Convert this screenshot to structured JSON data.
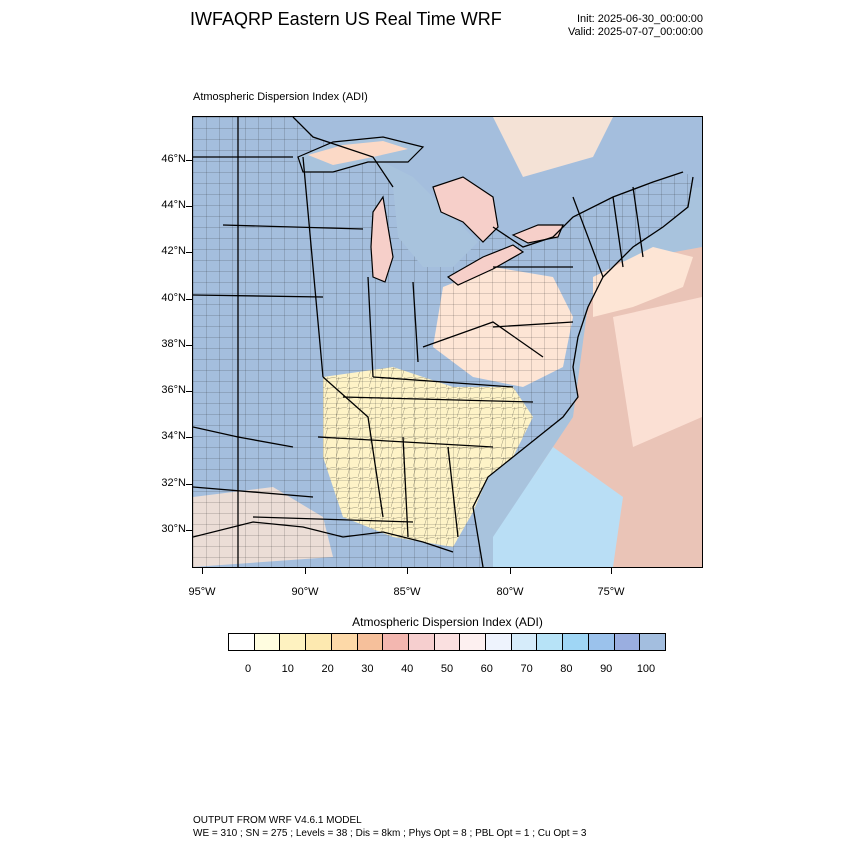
{
  "header": {
    "title": "IWFAQRP Eastern US Real Time WRF",
    "init": "Init: 2025-06-30_00:00:00",
    "valid": "Valid: 2025-07-07_00:00:00"
  },
  "map": {
    "subtitle": "Atmospheric Dispersion Index   (ADI)",
    "lat_labels": [
      "46°N",
      "44°N",
      "42°N",
      "40°N",
      "38°N",
      "36°N",
      "34°N",
      "32°N",
      "30°N"
    ],
    "lon_labels": [
      "95°W",
      "90°W",
      "85°W",
      "80°W",
      "75°W"
    ],
    "colors": {
      "water": "#a8c3dd",
      "land_good": "#a4bedd",
      "land_mid": "#fde5d5",
      "land_low": "#fef3c7",
      "plume": "#f6c4b0",
      "plume_light": "#fbe0d4",
      "high_blue": "#b9def5",
      "state_lines": "#000000",
      "county_lines": "#1a1a1a"
    }
  },
  "colorbar": {
    "title": "Atmospheric Dispersion Index  (ADI)",
    "colors": [
      "#ffffff",
      "#fffde0",
      "#fef2c0",
      "#fde9b0",
      "#fdd9a8",
      "#f6c09b",
      "#f3b7b0",
      "#f6cfcf",
      "#fae0e0",
      "#fdf0f0",
      "#eef3fd",
      "#d6ecfa",
      "#b7e3f7",
      "#9fd6f5",
      "#9bc2ec",
      "#9aaee0",
      "#a3bedf"
    ],
    "ticks": [
      "0",
      "10",
      "20",
      "30",
      "40",
      "50",
      "60",
      "70",
      "80",
      "90",
      "100"
    ]
  },
  "footer": {
    "line1": "OUTPUT FROM WRF V4.6.1 MODEL",
    "line2": "WE = 310 ; SN = 275 ; Levels = 38 ; Dis = 8km ; Phys Opt = 8 ; PBL Opt = 1 ; Cu Opt = 3"
  }
}
